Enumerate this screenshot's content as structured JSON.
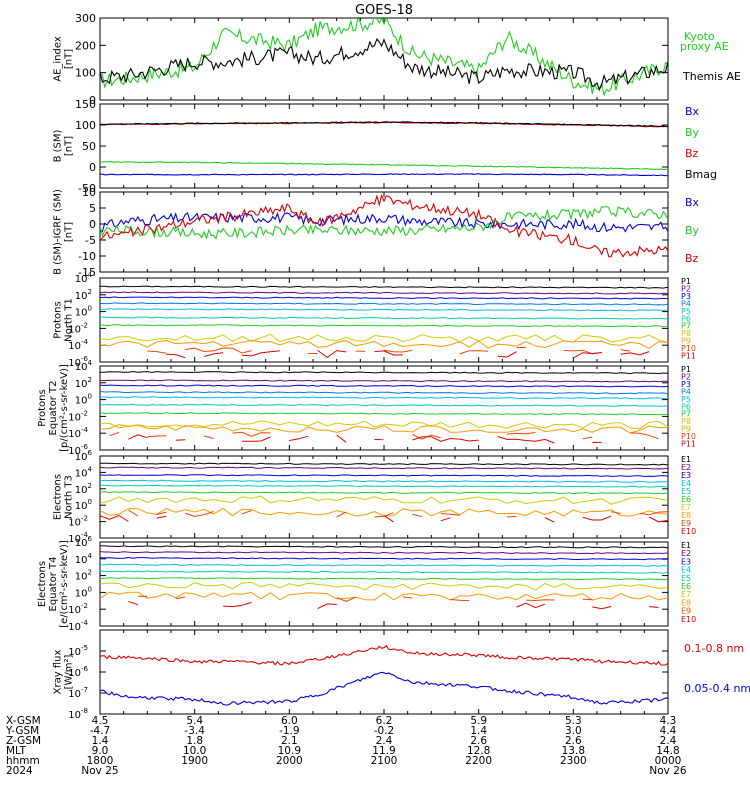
{
  "title": "GOES-18",
  "colors": {
    "axis": "#000000",
    "red": "#dd0000",
    "green": "#22cc22",
    "blue": "#0000dd",
    "black": "#000000"
  },
  "chart_data": [
    {
      "type": "line",
      "id": "ae",
      "ylabel": [
        "AE_index",
        "[nT]"
      ],
      "ylim": [
        0,
        300
      ],
      "yticks": [
        "0",
        "100",
        "200",
        "300"
      ],
      "x": [
        1800,
        1830,
        1900,
        1930,
        2000,
        2030,
        2100,
        2130,
        2200,
        2230,
        2300,
        2330,
        2400
      ],
      "series": [
        {
          "name": "Kyoto proxy AE",
          "color": "#22cc22",
          "values": [
            70,
            80,
            120,
            240,
            200,
            260,
            290,
            170,
            110,
            230,
            70,
            40,
            130
          ]
        },
        {
          "name": "Themis AE",
          "color": "#000000",
          "values": [
            80,
            90,
            140,
            140,
            170,
            150,
            210,
            120,
            80,
            110,
            100,
            60,
            120
          ]
        }
      ]
    },
    {
      "type": "line",
      "id": "bsm",
      "ylabel": [
        "B (SM)",
        "[nT]"
      ],
      "ylim": [
        -50,
        150
      ],
      "yticks": [
        "-50",
        "0",
        "50",
        "100",
        "150"
      ],
      "x": [
        1800,
        1900,
        2000,
        2100,
        2200,
        2300,
        2400
      ],
      "series": [
        {
          "name": "Bx",
          "color": "#0000dd",
          "values": [
            -18,
            -18,
            -18,
            -17,
            -17,
            -18,
            -20
          ]
        },
        {
          "name": "By",
          "color": "#22cc22",
          "values": [
            12,
            11,
            8,
            5,
            2,
            -2,
            -5
          ]
        },
        {
          "name": "Bz",
          "color": "#dd0000",
          "values": [
            101,
            103,
            104,
            106,
            104,
            100,
            96
          ]
        },
        {
          "name": "Bmag",
          "color": "#000000",
          "values": [
            102,
            104,
            105,
            107,
            105,
            101,
            97
          ]
        }
      ]
    },
    {
      "type": "line",
      "id": "bigrf",
      "ylabel": [
        "B (SM)-IGRF (SM)",
        "[nT]"
      ],
      "ylim": [
        -15,
        10
      ],
      "yticks": [
        "-15",
        "-10",
        "-5",
        "0",
        "5",
        "10"
      ],
      "x": [
        1800,
        1830,
        1900,
        1930,
        2000,
        2030,
        2100,
        2130,
        2200,
        2230,
        2300,
        2330,
        2400
      ],
      "series": [
        {
          "name": "Bx",
          "color": "#0000dd",
          "values": [
            -1,
            1,
            2,
            2,
            2,
            1,
            2,
            1,
            0,
            0,
            0,
            -1,
            -1
          ]
        },
        {
          "name": "By",
          "color": "#22cc22",
          "values": [
            -2,
            -2,
            -3,
            -3,
            -2,
            -2,
            -2,
            -2,
            -1,
            2,
            3,
            4,
            3
          ]
        },
        {
          "name": "Bz",
          "color": "#dd0000",
          "values": [
            -4,
            -3,
            1,
            2,
            5,
            0,
            8,
            6,
            3,
            -2,
            -5,
            -9,
            -8
          ]
        }
      ]
    },
    {
      "type": "line",
      "id": "protons-t1",
      "log": true,
      "ylabel": [
        "Protons",
        "North T1"
      ],
      "ylim": [
        -6,
        4
      ],
      "yticks": [
        "4",
        "2",
        "0",
        "-2",
        "-4",
        "-6"
      ],
      "legend": [
        "P1",
        "P2",
        "P3",
        "P4",
        "P5",
        "P6",
        "P7",
        "P8",
        "P9",
        "P10",
        "P11"
      ],
      "legend_colors": [
        "#000000",
        "#6a0080",
        "#0000dd",
        "#0077ee",
        "#00bbee",
        "#00ccaa",
        "#22cc22",
        "#cccc00",
        "#ff9900",
        "#ee4400",
        "#dd0000"
      ],
      "levels": [
        3.0,
        2.3,
        1.7,
        1.0,
        0.3,
        -0.7,
        -1.6,
        -3.1,
        -3.8,
        -4.6,
        -5.0
      ]
    },
    {
      "type": "line",
      "id": "protons-t2",
      "log": true,
      "ylabel": [
        "Protons",
        "Equator T2",
        "[p/(cm²-s-sr-keV)]"
      ],
      "ylim": [
        -6,
        4
      ],
      "yticks": [
        "4",
        "2",
        "0",
        "-2",
        "-4",
        "-6"
      ],
      "legend": [
        "P1",
        "P2",
        "P3",
        "P4",
        "P5",
        "P6",
        "P7",
        "P8",
        "P9",
        "P10",
        "P11"
      ],
      "legend_colors": [
        "#000000",
        "#6a0080",
        "#0000dd",
        "#0077ee",
        "#00bbee",
        "#00ccaa",
        "#22cc22",
        "#cccc00",
        "#ff9900",
        "#ee4400",
        "#dd0000"
      ],
      "levels": [
        3.3,
        2.3,
        1.7,
        0.9,
        0.3,
        -0.6,
        -1.6,
        -2.9,
        -3.4,
        -4.2,
        -4.6
      ]
    },
    {
      "type": "line",
      "id": "electrons-t3",
      "log": true,
      "ylabel": [
        "Electrons",
        "North T3"
      ],
      "ylim": [
        -4,
        6
      ],
      "yticks": [
        "6",
        "4",
        "2",
        "0",
        "-2",
        "-4"
      ],
      "legend": [
        "E1",
        "E2",
        "E3",
        "E4",
        "E5",
        "E6",
        "E7",
        "E8",
        "E9",
        "E10"
      ],
      "legend_colors": [
        "#000000",
        "#6a0080",
        "#0000dd",
        "#00bbee",
        "#00ccaa",
        "#22cc22",
        "#cccc00",
        "#ff9900",
        "#ee4400",
        "#dd0000"
      ],
      "levels": [
        5.1,
        4.6,
        3.7,
        3.0,
        2.4,
        1.6,
        0.7,
        -0.8,
        -1.0,
        -1.6
      ]
    },
    {
      "type": "line",
      "id": "electrons-t4",
      "log": true,
      "ylabel": [
        "Electrons",
        "Equator T4",
        "[e/(cm²-s-sr-keV)]"
      ],
      "ylim": [
        -4,
        6
      ],
      "yticks": [
        "6",
        "4",
        "2",
        "0",
        "-2",
        "-4"
      ],
      "legend": [
        "E1",
        "E2",
        "E3",
        "E4",
        "E5",
        "E6",
        "E7",
        "E8",
        "E9",
        "E10"
      ],
      "legend_colors": [
        "#000000",
        "#6a0080",
        "#0000dd",
        "#00bbee",
        "#00ccaa",
        "#22cc22",
        "#cccc00",
        "#ff9900",
        "#ee4400",
        "#dd0000"
      ],
      "levels": [
        5.5,
        4.8,
        4.1,
        3.3,
        2.5,
        1.7,
        0.8,
        -0.4,
        -0.8,
        -1.5
      ]
    },
    {
      "type": "line",
      "id": "xray",
      "log": true,
      "ylabel": [
        "Xray flux",
        "[W/m²]"
      ],
      "ylim": [
        -8,
        -4
      ],
      "yticks": [
        "-5",
        "-6",
        "-7",
        "-8"
      ],
      "x": [
        1800,
        1830,
        1900,
        1930,
        2000,
        2030,
        2100,
        2130,
        2200,
        2230,
        2300,
        2330,
        2400
      ],
      "series": [
        {
          "name": "0.1-0.8 nm",
          "color": "#dd0000",
          "values": [
            -5.3,
            -5.3,
            -5.5,
            -5.5,
            -5.6,
            -5.4,
            -4.8,
            -5.1,
            -5.2,
            -5.3,
            -5.4,
            -5.5,
            -5.6
          ]
        },
        {
          "name": "0.05-0.4 nm",
          "color": "#0000dd",
          "values": [
            -6.9,
            -7.2,
            -7.3,
            -7.5,
            -7.4,
            -7.1,
            -6.0,
            -6.5,
            -6.7,
            -6.9,
            -7.2,
            -7.5,
            -7.3
          ]
        }
      ]
    }
  ],
  "xaxis": {
    "rows": [
      {
        "label": "X-GSM",
        "values": [
          "4.5",
          "5.4",
          "6.0",
          "6.2",
          "5.9",
          "5.3",
          "4.3"
        ]
      },
      {
        "label": "Y-GSM",
        "values": [
          "-4.7",
          "-3.4",
          "-1.9",
          "-0.2",
          "1.4",
          "3.0",
          "4.4"
        ]
      },
      {
        "label": "Z-GSM",
        "values": [
          "1.4",
          "1.8",
          "2.1",
          "2.4",
          "2.6",
          "2.6",
          "2.4"
        ]
      },
      {
        "label": "MLT",
        "values": [
          "9.0",
          "10.0",
          "10.9",
          "11.9",
          "12.8",
          "13.8",
          "14.8"
        ]
      },
      {
        "label": "hhmm",
        "values": [
          "1800",
          "1900",
          "2000",
          "2100",
          "2200",
          "2300",
          "0000"
        ]
      }
    ],
    "year": "2024",
    "start_date": "Nov 25",
    "end_date": "Nov 26"
  }
}
